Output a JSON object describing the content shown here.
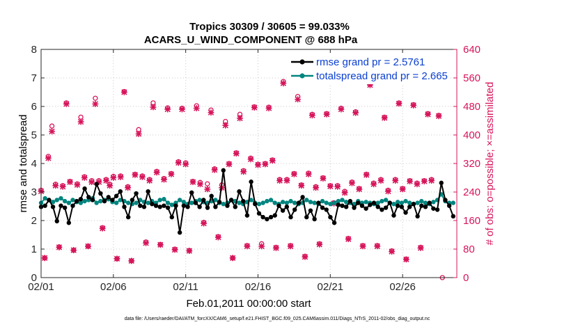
{
  "chart_data": {
    "type": "line",
    "title": "Tropics 30309 / 30605 = 99.033%",
    "subtitle": "ACARS_U_WIND_COMPONENT @ 688 hPa",
    "xlabel": "Feb.01,2011 00:00:00 start",
    "ylabel": "rmse and totalspread",
    "y2label": "# of obs: o=possible; ×=assimilated",
    "footnote": "data file: /Users/raeder/DAI/ATM_forcXX/CAM6_setup/f.e21.FHIST_BGC.f09_025.CAM6assim.011/Diags_NTrS_2011-02/obs_diag_output.nc",
    "xlim": [
      1,
      29.75
    ],
    "ylim": [
      0,
      8
    ],
    "y2lim": [
      0,
      640
    ],
    "xticks": [
      1,
      6,
      11,
      16,
      21,
      26
    ],
    "xticklabels": [
      "02/01",
      "02/06",
      "02/11",
      "02/16",
      "02/21",
      "02/26"
    ],
    "yticks": [
      0,
      1,
      2,
      3,
      4,
      5,
      6,
      7,
      8
    ],
    "y2ticks": [
      0,
      80,
      160,
      240,
      320,
      400,
      480,
      560,
      640
    ],
    "colors": {
      "rmse": "#000000",
      "spread": "#00857f",
      "obs": "#d6145a",
      "legend_text": "#0a3fd0",
      "axis2": "#d6145a"
    },
    "rmse_values": [
      2.48,
      2.52,
      2.72,
      2.48,
      1.98,
      2.52,
      2.45,
      1.92,
      2.52,
      2.68,
      2.75,
      3.12,
      2.82,
      2.72,
      3.28,
      2.95,
      2.68,
      2.82,
      2.72,
      2.86,
      3.02,
      2.48,
      2.12,
      2.72,
      2.95,
      2.52,
      2.48,
      3.02,
      2.58,
      2.52,
      2.48,
      2.52,
      2.45,
      2.12,
      2.52,
      1.58,
      2.52,
      2.48,
      2.98,
      2.62,
      2.48,
      2.72,
      2.45,
      2.86,
      2.48,
      2.65,
      3.76,
      2.52,
      2.72,
      2.48,
      3.02,
      2.68,
      2.18,
      3.36,
      2.58,
      2.25,
      2.12,
      2.05,
      2.12,
      2.18,
      2.52,
      2.35,
      2.48,
      2.12,
      2.38,
      2.62,
      2.82,
      2.12,
      2.35,
      2.05,
      2.62,
      2.45,
      2.38,
      2.12,
      1.92,
      2.55,
      2.52,
      2.48,
      2.68,
      2.45,
      2.62,
      2.52,
      2.42,
      2.55,
      2.62,
      2.48,
      2.38,
      2.45,
      2.62,
      2.18,
      2.52,
      2.48,
      2.28,
      2.48,
      2.58,
      2.15,
      2.52,
      2.48,
      2.62,
      2.42,
      2.38,
      3.32,
      2.72,
      2.52,
      2.15
    ],
    "spread_values": [
      2.62,
      2.78,
      2.72,
      2.65,
      2.72,
      2.78,
      2.68,
      2.62,
      2.72,
      2.65,
      2.62,
      2.68,
      2.72,
      2.78,
      2.62,
      2.68,
      2.72,
      2.75,
      2.65,
      2.62,
      2.72,
      2.68,
      2.62,
      2.58,
      2.62,
      2.72,
      2.65,
      2.62,
      2.68,
      2.62,
      2.72,
      2.75,
      2.62,
      2.55,
      2.62,
      2.72,
      2.65,
      2.58,
      2.62,
      2.68,
      2.72,
      2.65,
      2.62,
      2.68,
      2.72,
      2.62,
      2.58,
      2.62,
      2.72,
      2.68,
      2.62,
      2.58,
      2.65,
      2.72,
      2.62,
      2.58,
      2.62,
      2.68,
      2.72,
      2.62,
      2.58,
      2.65,
      2.62,
      2.68,
      2.62,
      2.58,
      2.62,
      2.72,
      2.65,
      2.62,
      2.58,
      2.68,
      2.62,
      2.58,
      2.62,
      2.68,
      2.72,
      2.65,
      2.62,
      2.58,
      2.68,
      2.62,
      2.65,
      2.62,
      2.58,
      2.62,
      2.68,
      2.72,
      2.62,
      2.58,
      2.65,
      2.62,
      2.68,
      2.62,
      2.58,
      2.62,
      2.68,
      2.62,
      2.58,
      2.65,
      2.72,
      2.92,
      2.68,
      2.62,
      2.62
    ],
    "obs_series": [
      {
        "name": "possible",
        "marker": "o"
      },
      {
        "name": "assimilated",
        "marker": "x"
      }
    ],
    "obs_possible": [
      [
        1.0,
        245
      ],
      [
        1.25,
        55
      ],
      [
        1.5,
        340
      ],
      [
        1.75,
        425
      ],
      [
        2.0,
        262
      ],
      [
        2.25,
        86
      ],
      [
        2.5,
        258
      ],
      [
        2.75,
        490
      ],
      [
        3.0,
        270
      ],
      [
        3.25,
        77
      ],
      [
        3.5,
        263
      ],
      [
        3.75,
        450
      ],
      [
        4.0,
        283
      ],
      [
        4.25,
        88
      ],
      [
        4.5,
        272
      ],
      [
        4.75,
        503
      ],
      [
        5.0,
        272
      ],
      [
        5.25,
        140
      ],
      [
        5.5,
        275
      ],
      [
        5.75,
        262
      ],
      [
        6.0,
        284
      ],
      [
        6.25,
        53
      ],
      [
        6.5,
        285
      ],
      [
        6.75,
        522
      ],
      [
        7.0,
        255
      ],
      [
        7.25,
        47
      ],
      [
        7.5,
        290
      ],
      [
        7.75,
        415
      ],
      [
        8.0,
        285
      ],
      [
        8.25,
        100
      ],
      [
        8.5,
        275
      ],
      [
        8.75,
        490
      ],
      [
        9.0,
        298
      ],
      [
        9.25,
        93
      ],
      [
        9.5,
        278
      ],
      [
        9.75,
        476
      ],
      [
        10.0,
        292
      ],
      [
        10.25,
        80
      ],
      [
        10.5,
        325
      ],
      [
        10.75,
        475
      ],
      [
        11.0,
        322
      ],
      [
        11.25,
        76
      ],
      [
        11.5,
        270
      ],
      [
        11.75,
        482
      ],
      [
        12.0,
        267
      ],
      [
        12.25,
        155
      ],
      [
        12.5,
        263
      ],
      [
        12.75,
        470
      ],
      [
        13.0,
        305
      ],
      [
        13.25,
        115
      ],
      [
        13.5,
        260
      ],
      [
        13.75,
        438
      ],
      [
        14.0,
        320
      ],
      [
        14.25,
        55
      ],
      [
        14.5,
        350
      ],
      [
        14.75,
        458
      ],
      [
        15.0,
        300
      ],
      [
        15.25,
        90
      ],
      [
        15.5,
        335
      ],
      [
        15.75,
        479
      ],
      [
        16.0,
        318
      ],
      [
        16.25,
        95
      ],
      [
        16.5,
        320
      ],
      [
        16.75,
        478
      ],
      [
        17.0,
        330
      ],
      [
        17.25,
        85
      ],
      [
        17.5,
        275
      ],
      [
        17.75,
        550
      ],
      [
        18.0,
        275
      ],
      [
        18.25,
        90
      ],
      [
        18.5,
        292
      ],
      [
        18.75,
        508
      ],
      [
        19.0,
        260
      ],
      [
        19.25,
        60
      ],
      [
        19.5,
        293
      ],
      [
        19.75,
        458
      ],
      [
        20.0,
        255
      ],
      [
        20.25,
        95
      ],
      [
        20.5,
        280
      ],
      [
        20.75,
        460
      ],
      [
        21.0,
        258
      ],
      [
        21.25,
        210
      ],
      [
        21.5,
        258
      ],
      [
        21.75,
        475
      ],
      [
        22.0,
        242
      ],
      [
        22.25,
        110
      ],
      [
        22.5,
        268
      ],
      [
        22.75,
        465
      ],
      [
        23.0,
        250
      ],
      [
        23.25,
        90
      ],
      [
        23.5,
        290
      ],
      [
        23.75,
        542
      ],
      [
        24.0,
        265
      ],
      [
        24.25,
        90
      ],
      [
        24.5,
        275
      ],
      [
        24.75,
        450
      ],
      [
        25.0,
        245
      ],
      [
        25.25,
        75
      ],
      [
        25.5,
        275
      ],
      [
        25.75,
        490
      ],
      [
        26.0,
        250
      ],
      [
        26.25,
        52
      ],
      [
        26.5,
        272
      ],
      [
        26.75,
        485
      ],
      [
        27.0,
        265
      ],
      [
        27.25,
        85
      ],
      [
        27.5,
        272
      ],
      [
        27.75,
        460
      ],
      [
        28.0,
        275
      ],
      [
        28.5,
        455
      ],
      [
        28.75,
        0
      ]
    ],
    "obs_assimilated": [
      [
        1.0,
        242
      ],
      [
        1.25,
        55
      ],
      [
        1.5,
        335
      ],
      [
        1.75,
        410
      ],
      [
        2.0,
        258
      ],
      [
        2.25,
        85
      ],
      [
        2.5,
        255
      ],
      [
        2.75,
        487
      ],
      [
        3.0,
        268
      ],
      [
        3.25,
        77
      ],
      [
        3.5,
        260
      ],
      [
        3.75,
        437
      ],
      [
        4.0,
        280
      ],
      [
        4.25,
        88
      ],
      [
        4.5,
        268
      ],
      [
        4.75,
        487
      ],
      [
        5.0,
        268
      ],
      [
        5.25,
        138
      ],
      [
        5.5,
        272
      ],
      [
        5.75,
        258
      ],
      [
        6.0,
        280
      ],
      [
        6.25,
        53
      ],
      [
        6.5,
        282
      ],
      [
        6.75,
        520
      ],
      [
        7.0,
        252
      ],
      [
        7.25,
        47
      ],
      [
        7.5,
        288
      ],
      [
        7.75,
        403
      ],
      [
        8.0,
        282
      ],
      [
        8.25,
        97
      ],
      [
        8.5,
        272
      ],
      [
        8.75,
        478
      ],
      [
        9.0,
        295
      ],
      [
        9.25,
        92
      ],
      [
        9.5,
        275
      ],
      [
        9.75,
        472
      ],
      [
        10.0,
        290
      ],
      [
        10.25,
        78
      ],
      [
        10.5,
        322
      ],
      [
        10.75,
        472
      ],
      [
        11.0,
        318
      ],
      [
        11.25,
        75
      ],
      [
        11.5,
        268
      ],
      [
        11.75,
        475
      ],
      [
        12.0,
        262
      ],
      [
        12.25,
        152
      ],
      [
        12.5,
        248
      ],
      [
        12.75,
        463
      ],
      [
        13.0,
        302
      ],
      [
        13.25,
        113
      ],
      [
        13.5,
        252
      ],
      [
        13.75,
        427
      ],
      [
        14.0,
        318
      ],
      [
        14.25,
        55
      ],
      [
        14.5,
        348
      ],
      [
        14.75,
        447
      ],
      [
        15.0,
        297
      ],
      [
        15.25,
        88
      ],
      [
        15.5,
        332
      ],
      [
        15.75,
        477
      ],
      [
        16.0,
        316
      ],
      [
        16.25,
        88
      ],
      [
        16.5,
        318
      ],
      [
        16.75,
        475
      ],
      [
        17.0,
        328
      ],
      [
        17.25,
        83
      ],
      [
        17.5,
        272
      ],
      [
        17.75,
        545
      ],
      [
        18.0,
        272
      ],
      [
        18.25,
        88
      ],
      [
        18.5,
        290
      ],
      [
        18.75,
        500
      ],
      [
        19.0,
        258
      ],
      [
        19.25,
        58
      ],
      [
        19.5,
        290
      ],
      [
        19.75,
        455
      ],
      [
        20.0,
        252
      ],
      [
        20.25,
        93
      ],
      [
        20.5,
        278
      ],
      [
        20.75,
        458
      ],
      [
        21.0,
        256
      ],
      [
        21.25,
        208
      ],
      [
        21.5,
        255
      ],
      [
        21.75,
        472
      ],
      [
        22.0,
        238
      ],
      [
        22.25,
        108
      ],
      [
        22.5,
        265
      ],
      [
        22.75,
        462
      ],
      [
        23.0,
        248
      ],
      [
        23.25,
        88
      ],
      [
        23.5,
        288
      ],
      [
        23.75,
        540
      ],
      [
        24.0,
        262
      ],
      [
        24.25,
        88
      ],
      [
        24.5,
        272
      ],
      [
        24.75,
        448
      ],
      [
        25.0,
        242
      ],
      [
        25.25,
        73
      ],
      [
        25.5,
        272
      ],
      [
        25.75,
        488
      ],
      [
        26.0,
        248
      ],
      [
        26.25,
        51
      ],
      [
        26.5,
        270
      ],
      [
        26.75,
        483
      ],
      [
        27.0,
        262
      ],
      [
        27.25,
        83
      ],
      [
        27.5,
        270
      ],
      [
        27.75,
        458
      ],
      [
        28.0,
        272
      ],
      [
        28.5,
        453
      ]
    ],
    "legend": [
      {
        "label": "rmse grand pr = 2.5761",
        "series": "rmse"
      },
      {
        "label": "totalspread grand pr = 2.665",
        "series": "spread"
      }
    ],
    "legend_position": "top-right",
    "grid": true
  }
}
